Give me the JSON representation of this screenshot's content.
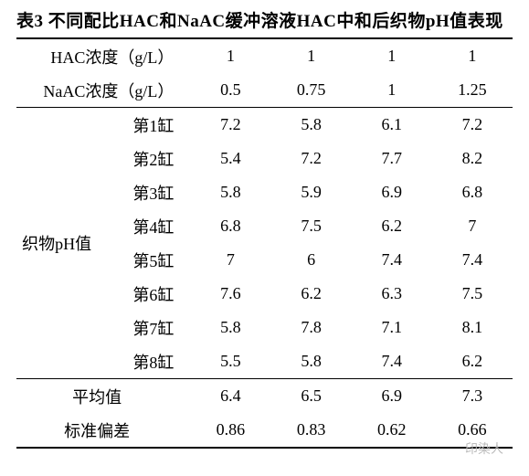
{
  "title": "表3 不同配比HAC和NaAC缓冲溶液HAC中和后织物pH值表现",
  "header": {
    "hac_label": "HAC浓度（g/L）",
    "naac_label": "NaAC浓度（g/L）",
    "hac_values": [
      "1",
      "1",
      "1",
      "1"
    ],
    "naac_values": [
      "0.5",
      "0.75",
      "1",
      "1.25"
    ]
  },
  "group_label": "织物pH值",
  "rows": [
    {
      "spec": "第1缸",
      "vals": [
        "7.2",
        "5.8",
        "6.1",
        "7.2"
      ]
    },
    {
      "spec": "第2缸",
      "vals": [
        "5.4",
        "7.2",
        "7.7",
        "8.2"
      ]
    },
    {
      "spec": "第3缸",
      "vals": [
        "5.8",
        "5.9",
        "6.9",
        "6.8"
      ]
    },
    {
      "spec": "第4缸",
      "vals": [
        "6.8",
        "7.5",
        "6.2",
        "7"
      ]
    },
    {
      "spec": "第5缸",
      "vals": [
        "7",
        "6",
        "7.4",
        "7.4"
      ]
    },
    {
      "spec": "第6缸",
      "vals": [
        "7.6",
        "6.2",
        "6.3",
        "7.5"
      ]
    },
    {
      "spec": "第7缸",
      "vals": [
        "5.8",
        "7.8",
        "7.1",
        "8.1"
      ]
    },
    {
      "spec": "第8缸",
      "vals": [
        "5.5",
        "5.8",
        "7.4",
        "6.2"
      ]
    }
  ],
  "footer": {
    "mean_label": "平均值",
    "mean_vals": [
      "6.4",
      "6.5",
      "6.9",
      "7.3"
    ],
    "sd_label": "标准偏差",
    "sd_vals": [
      "0.86",
      "0.83",
      "0.62",
      "0.66"
    ]
  },
  "watermark": "印染人"
}
